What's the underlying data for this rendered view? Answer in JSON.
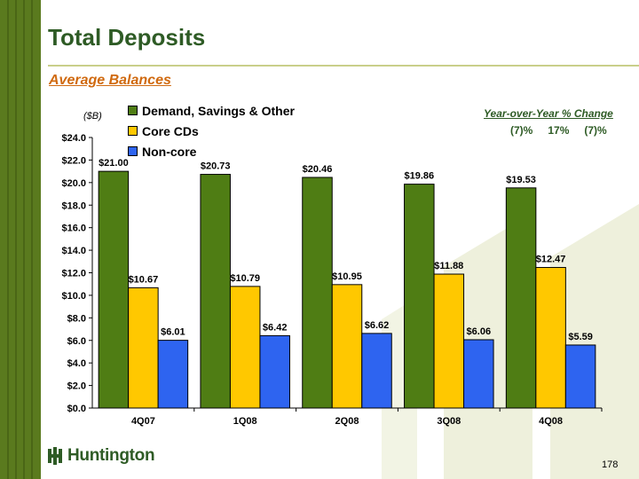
{
  "page": {
    "title": "Total Deposits",
    "subtitle": "Average Balances",
    "page_number": "178",
    "logo_text": "Huntington"
  },
  "yoy": {
    "title": "Year-over-Year % Change",
    "values": [
      "(7)%",
      "17%",
      "(7)%"
    ]
  },
  "colors": {
    "accent_green": "#2e5b25",
    "subtitle_orange": "#d06a10",
    "bar_green": "#4f7d14",
    "bar_yellow": "#ffc800",
    "bar_blue": "#2e64f0"
  },
  "chart_data": {
    "type": "bar",
    "unit_label": "($B)",
    "categories": [
      "4Q07",
      "1Q08",
      "2Q08",
      "3Q08",
      "4Q08"
    ],
    "series": [
      {
        "name": "Demand, Savings & Other",
        "color": "#4f7d14",
        "values": [
          21.0,
          20.73,
          20.46,
          19.86,
          19.53
        ],
        "labels": [
          "$21.00",
          "$20.73",
          "$20.46",
          "$19.86",
          "$19.53"
        ]
      },
      {
        "name": "Core CDs",
        "color": "#ffc800",
        "values": [
          10.67,
          10.79,
          10.95,
          11.88,
          12.47
        ],
        "labels": [
          "$10.67",
          "$10.79",
          "$10.95",
          "$11.88",
          "$12.47"
        ]
      },
      {
        "name": "Non-core",
        "color": "#2e64f0",
        "values": [
          6.01,
          6.42,
          6.62,
          6.06,
          5.59
        ],
        "labels": [
          "$6.01",
          "$6.42",
          "$6.62",
          "$6.06",
          "$5.59"
        ]
      }
    ],
    "ylim": [
      0,
      24
    ],
    "yticks": [
      "$0.0",
      "$2.0",
      "$4.0",
      "$6.0",
      "$8.0",
      "$10.0",
      "$12.0",
      "$14.0",
      "$16.0",
      "$18.0",
      "$20.0",
      "$22.0",
      "$24.0"
    ],
    "legend_position": "top-left",
    "grid": false
  }
}
